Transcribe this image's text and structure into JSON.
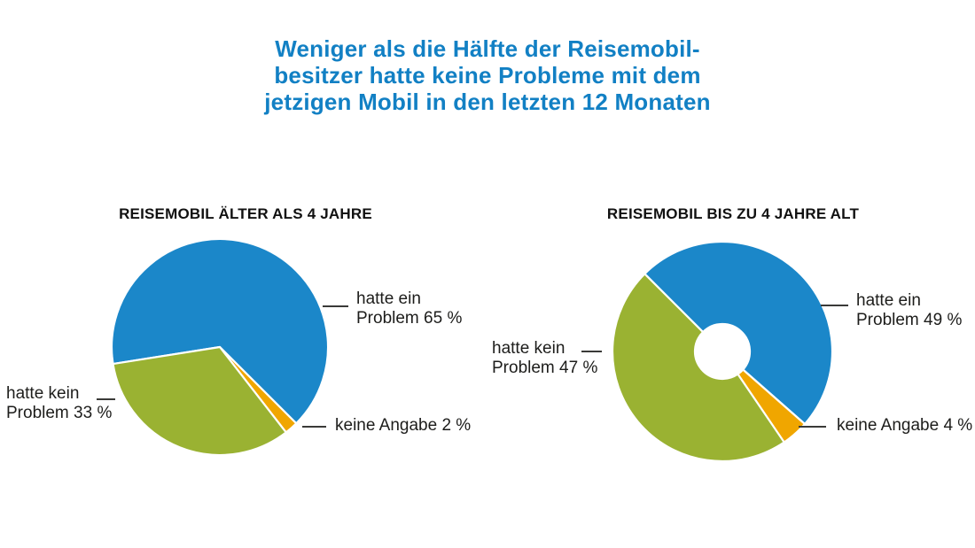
{
  "title": {
    "lines": [
      "Weniger als die Hälfte der Reisemobil-",
      "besitzer hatte keine Probleme mit dem",
      "jetzigen Mobil in den letzten 12 Monaten"
    ],
    "color": "#1280c4"
  },
  "colors": {
    "blue": "#1b87c9",
    "green": "#9ab232",
    "orange": "#f0a600",
    "label_text": "#1d1d1b",
    "leader_line": "#3a3a38"
  },
  "chart_data": [
    {
      "type": "pie",
      "title": "REISEMOBIL ÄLTER ALS 4 JAHRE",
      "start_angle_deg": 261,
      "inner_radius_ratio": 0,
      "legend_position": "none",
      "slices": [
        {
          "label": "hatte ein Problem",
          "value": 65,
          "color": "#1b87c9"
        },
        {
          "label": "keine Angabe",
          "value": 2,
          "color": "#f0a600"
        },
        {
          "label": "hatte kein Problem",
          "value": 33,
          "color": "#9ab232"
        }
      ],
      "annotations": [
        {
          "id": "right",
          "lines": [
            "hatte ein",
            "Problem 65 %"
          ]
        },
        {
          "id": "left",
          "lines": [
            "hatte kein",
            "Problem 33 %"
          ]
        },
        {
          "id": "bottom",
          "lines": [
            "keine Angabe 2 %"
          ]
        }
      ]
    },
    {
      "type": "pie",
      "title": "REISEMOBIL BIS ZU 4 JAHRE ALT",
      "start_angle_deg": 315,
      "inner_radius_ratio": 0.25,
      "legend_position": "none",
      "slices": [
        {
          "label": "hatte ein Problem",
          "value": 49,
          "color": "#1b87c9"
        },
        {
          "label": "keine Angabe",
          "value": 4,
          "color": "#f0a600"
        },
        {
          "label": "hatte kein Problem",
          "value": 47,
          "color": "#9ab232"
        }
      ],
      "annotations": [
        {
          "id": "right",
          "lines": [
            "hatte ein",
            "Problem 49 %"
          ]
        },
        {
          "id": "left",
          "lines": [
            "hatte kein",
            "Problem 47 %"
          ]
        },
        {
          "id": "bottom",
          "lines": [
            "keine Angabe 4 %"
          ]
        }
      ]
    }
  ]
}
